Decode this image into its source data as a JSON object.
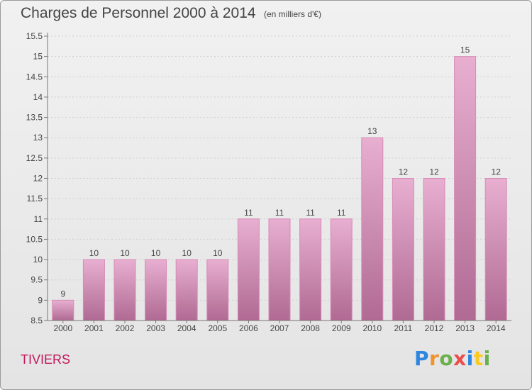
{
  "title": "Charges de Personnel 2000 à 2014",
  "subtitle": "(en milliers d'€)",
  "town": "TIVIERS",
  "logo": {
    "letters": [
      {
        "ch": "P",
        "color": "#2e86de"
      },
      {
        "ch": "r",
        "color": "#f0932b"
      },
      {
        "ch": "o",
        "color": "#6ab04c"
      },
      {
        "ch": "x",
        "color": "#eb4d4b"
      },
      {
        "ch": "i",
        "color": "#2e86de"
      },
      {
        "ch": "t",
        "color": "#f9ca24"
      },
      {
        "ch": "i",
        "color": "#6ab04c"
      }
    ]
  },
  "colors": {
    "bar_light": "#e8afd1",
    "bar_dark": "#b06a93",
    "bar_edge": "#d68bb6",
    "axis": "#777777",
    "grid": "#cfcfcf",
    "text": "#444444"
  },
  "chart_data": {
    "type": "bar",
    "title": "Charges de Personnel 2000 à 2014",
    "subtitle": "(en milliers d'€)",
    "categories": [
      "2000",
      "2001",
      "2002",
      "2003",
      "2004",
      "2005",
      "2006",
      "2007",
      "2008",
      "2009",
      "2010",
      "2011",
      "2012",
      "2013",
      "2014"
    ],
    "values": [
      9,
      10,
      10,
      10,
      10,
      10,
      11,
      11,
      11,
      11,
      13,
      12,
      12,
      15,
      12
    ],
    "ylim": [
      8.5,
      15.5
    ],
    "yticks": [
      8.5,
      9,
      9.5,
      10,
      10.5,
      11,
      11.5,
      12,
      12.5,
      13,
      13.5,
      14,
      14.5,
      15,
      15.5
    ],
    "grid": true,
    "legend": "none"
  }
}
